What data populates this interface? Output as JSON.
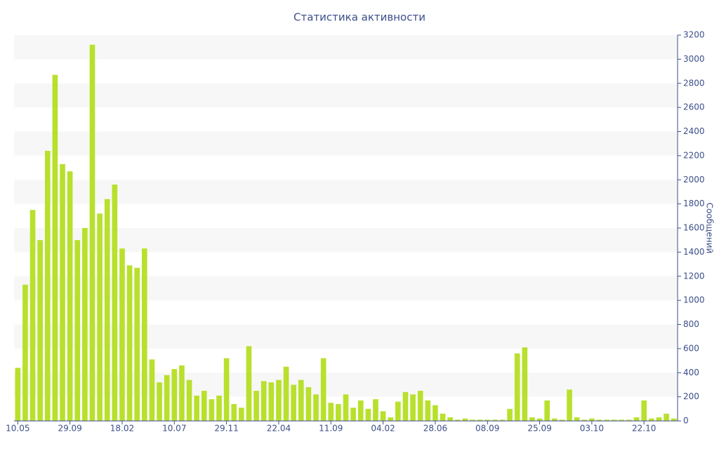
{
  "chart_data": {
    "type": "bar",
    "title": "Статистика активности",
    "y_label": "Сообщений",
    "categories": [
      "10.05",
      null,
      null,
      null,
      null,
      null,
      null,
      "29.09",
      null,
      null,
      null,
      null,
      null,
      null,
      "18.02",
      null,
      null,
      null,
      null,
      null,
      null,
      "10.07",
      null,
      null,
      null,
      null,
      null,
      null,
      "29.11",
      null,
      null,
      null,
      null,
      null,
      null,
      "22.04",
      null,
      null,
      null,
      null,
      null,
      null,
      "11.09",
      null,
      null,
      null,
      null,
      null,
      null,
      "04.02",
      null,
      null,
      null,
      null,
      null,
      null,
      "28.06",
      null,
      null,
      null,
      null,
      null,
      null,
      "08.09",
      null,
      null,
      null,
      null,
      null,
      null,
      "25.09",
      null,
      null,
      null,
      null,
      null,
      null,
      "03.10",
      null,
      null,
      null,
      null,
      null,
      null,
      "22.10",
      null,
      null,
      null,
      null
    ],
    "values": [
      440,
      1130,
      1750,
      1500,
      2240,
      2870,
      2130,
      2070,
      1500,
      1600,
      3120,
      1720,
      1840,
      1960,
      1430,
      1290,
      1270,
      1430,
      510,
      320,
      380,
      430,
      460,
      340,
      210,
      250,
      180,
      210,
      520,
      140,
      110,
      620,
      250,
      330,
      320,
      340,
      450,
      300,
      340,
      280,
      220,
      520,
      150,
      140,
      220,
      110,
      170,
      100,
      180,
      80,
      30,
      160,
      240,
      220,
      250,
      170,
      130,
      60,
      30,
      10,
      20,
      10,
      10,
      10,
      10,
      10,
      100,
      560,
      610,
      30,
      20,
      170,
      20,
      10,
      260,
      30,
      10,
      20,
      10,
      10,
      10,
      10,
      10,
      30,
      170,
      20,
      30,
      60,
      20
    ],
    "color": "#b8e02c",
    "ylim": [
      0,
      3200
    ],
    "yticks": [
      0,
      200,
      400,
      600,
      800,
      1000,
      1200,
      1400,
      1600,
      1800,
      2000,
      2200,
      2400,
      2600,
      2800,
      3000,
      3200
    ],
    "y_axis_side": "right",
    "grid": true
  }
}
